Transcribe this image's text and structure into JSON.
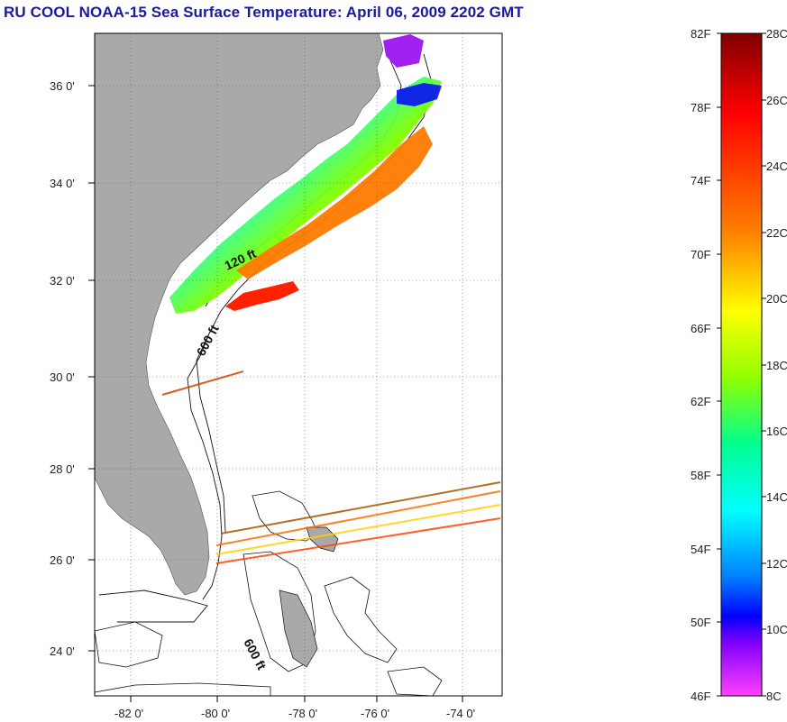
{
  "title": "RU COOL  NOAA-15  Sea Surface Temperature:  April 06, 2009 2202 GMT",
  "map": {
    "lat_labels": [
      "36 0'",
      "34 0'",
      "32 0'",
      "30 0'",
      "28 0'",
      "26 0'",
      "24 0'"
    ],
    "lon_labels": [
      "-82 0'",
      "-80 0'",
      "-78 0'",
      "-76 0'",
      "-74 0'"
    ],
    "contour_labels": [
      "120 ft",
      "600 ft",
      "600 ft"
    ],
    "land_color": "#a9a9a9",
    "ocean_color": "#ffffff"
  },
  "colorbar": {
    "fahrenheit_labels": [
      "82F",
      "78F",
      "74F",
      "70F",
      "66F",
      "62F",
      "58F",
      "54F",
      "50F",
      "46F"
    ],
    "celsius_labels": [
      "28C",
      "26C",
      "24C",
      "22C",
      "20C",
      "18C",
      "16C",
      "14C",
      "12C",
      "10C",
      "8C"
    ],
    "colors": [
      "#800000",
      "#ff0000",
      "#ff8000",
      "#ffff00",
      "#80ff00",
      "#00ff80",
      "#00ffff",
      "#0080ff",
      "#0000ff",
      "#8000ff",
      "#ff40ff"
    ]
  }
}
